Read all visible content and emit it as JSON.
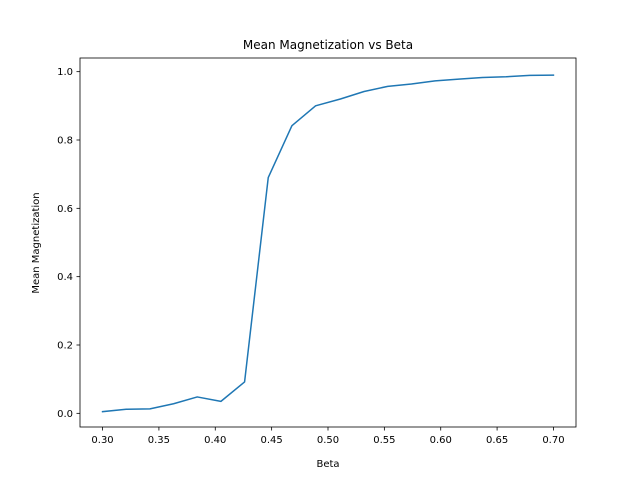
{
  "chart_data": {
    "type": "line",
    "title": "Mean Magnetization vs Beta",
    "xlabel": "Beta",
    "ylabel": "Mean Magnetization",
    "xlim": [
      0.28,
      0.72
    ],
    "ylim": [
      -0.04,
      1.04
    ],
    "xticks": [
      "0.30",
      "0.35",
      "0.40",
      "0.45",
      "0.50",
      "0.55",
      "0.60",
      "0.65",
      "0.70"
    ],
    "yticks": [
      "0.0",
      "0.2",
      "0.4",
      "0.6",
      "0.8",
      "1.0"
    ],
    "grid": false,
    "series": [
      {
        "color": "#1f77b4",
        "x": [
          0.3,
          0.321,
          0.342,
          0.363,
          0.384,
          0.405,
          0.426,
          0.447,
          0.468,
          0.489,
          0.511,
          0.532,
          0.553,
          0.574,
          0.595,
          0.616,
          0.637,
          0.658,
          0.679,
          0.7
        ],
        "y": [
          0.005,
          0.012,
          0.013,
          0.028,
          0.048,
          0.035,
          0.092,
          0.69,
          0.842,
          0.9,
          0.92,
          0.942,
          0.957,
          0.964,
          0.973,
          0.978,
          0.983,
          0.985,
          0.989,
          0.99
        ]
      }
    ]
  }
}
